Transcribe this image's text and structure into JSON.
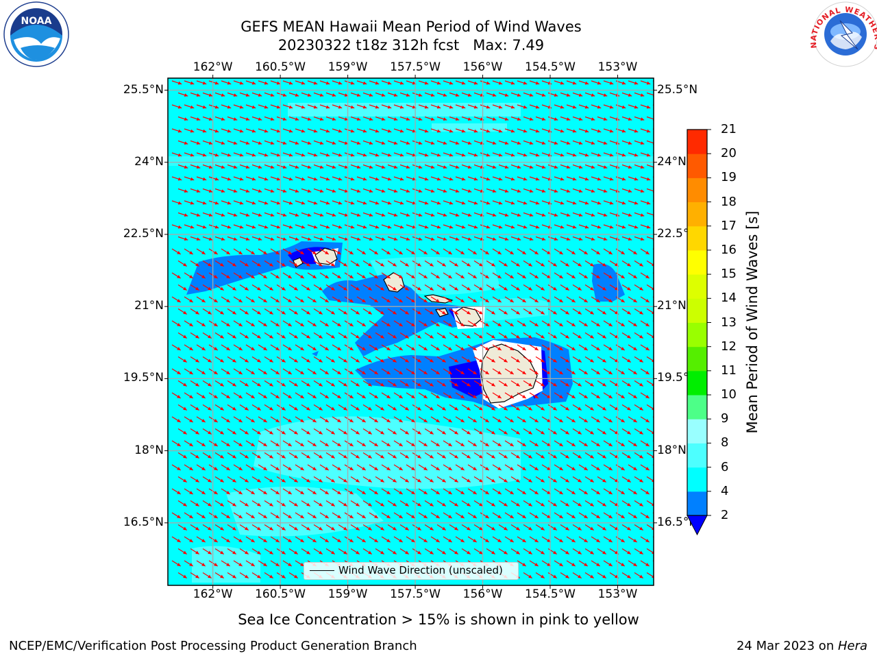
{
  "header": {
    "title_line1": "GEFS MEAN Hawaii Mean Period of Wind Waves",
    "title_line2": "20230322 t18z 312h fcst   Max: 7.49"
  },
  "logos": {
    "left": {
      "text": "NOAA",
      "ring_text": "NATIONAL OCEANIC AND ATMOSPHERIC ADMINISTRATION · U.S. DEPARTMENT OF COMMERCE"
    },
    "right": {
      "ring_text": "NATIONAL WEATHER SERVICE"
    }
  },
  "map": {
    "lon_labels": [
      "162°W",
      "160.5°W",
      "159°W",
      "157.5°W",
      "156°W",
      "154.5°W",
      "153°W"
    ],
    "lat_labels": [
      "25.5°N",
      "24°N",
      "22.5°N",
      "21°N",
      "19.5°N",
      "18°N",
      "16.5°N"
    ],
    "lon_range": [
      -163,
      -152.2
    ],
    "lat_range": [
      15.2,
      25.75
    ],
    "grid": true,
    "ocean_color": "#00ffff",
    "arrow_color": "#ff0000",
    "land_color": "#efebd8",
    "legend": {
      "label": "Wind Wave Direction (unscaled)"
    }
  },
  "colorbar": {
    "title": "Mean Period of Wind Waves [s]",
    "levels": [
      "2",
      "4",
      "6",
      "8",
      "9",
      "10",
      "11",
      "12",
      "13",
      "14",
      "15",
      "16",
      "17",
      "18",
      "19",
      "20",
      "21"
    ],
    "colors": [
      "#0080ff",
      "#00ffff",
      "#4dffff",
      "#99ffff",
      "#4dff88",
      "#00ee00",
      "#55ee00",
      "#99ff00",
      "#ccff00",
      "#ddff00",
      "#ffff00",
      "#ffd700",
      "#ffb000",
      "#ff8c00",
      "#ff5a00",
      "#ff2a00"
    ],
    "under_color": "#0000ff",
    "over_color": "#ff0000"
  },
  "footer": {
    "ice_note": "Sea Ice Concentration > 15% is shown in pink to yellow",
    "left": "NCEP/EMC/Verification Post Processing Product Generation Branch",
    "right_prefix": "24 Mar 2023 on ",
    "right_machine": "Hera"
  }
}
